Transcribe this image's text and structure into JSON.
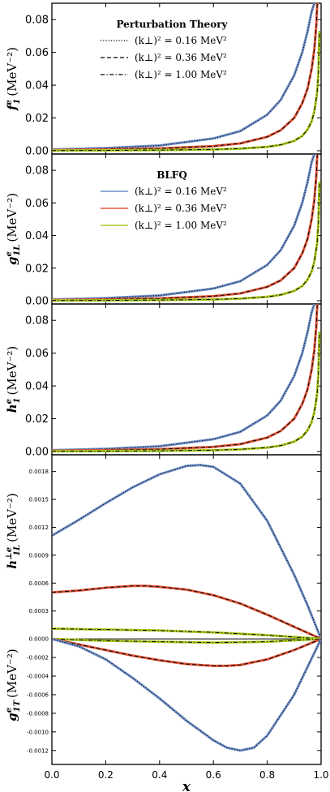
{
  "colors": {
    "series": [
      "#6f8fc9",
      "#e0563a",
      "#aacb22"
    ],
    "overlay": "#000000",
    "frame": "#000000"
  },
  "chart_data": [
    {
      "type": "line",
      "panel": "f1",
      "ylabel": "f_1^e (MeV^-2)",
      "ylabel_main": "f",
      "ylabel_sub": "1",
      "ylabel_sup": "e",
      "ylabel_unit": "(MeV⁻²)",
      "xlim": [
        0,
        1
      ],
      "ylim": [
        -0.002,
        0.09
      ],
      "yticks": [
        0.0,
        0.02,
        0.04,
        0.06,
        0.08
      ],
      "ytick_labels": [
        "0.00",
        "0.02",
        "0.04",
        "0.06",
        "0.08"
      ],
      "legend": {
        "title": "Perturbation Theory",
        "location": "upper-center",
        "entries": [
          "(k⊥)² = 0.16 MeV²",
          "(k⊥)² = 0.36 MeV²",
          "(k⊥)² = 1.00 MeV²"
        ],
        "entry_styles": [
          "dotted",
          "dashed",
          "dashdot"
        ]
      },
      "series": [
        {
          "x": [
            0.0,
            0.2,
            0.4,
            0.6,
            0.7,
            0.8,
            0.85,
            0.9,
            0.93,
            0.95,
            0.965,
            0.975
          ],
          "values": [
            0.0008,
            0.0016,
            0.0032,
            0.0075,
            0.012,
            0.022,
            0.031,
            0.046,
            0.06,
            0.073,
            0.085,
            0.09
          ]
        },
        {
          "x": [
            0.0,
            0.2,
            0.4,
            0.6,
            0.7,
            0.8,
            0.85,
            0.9,
            0.93,
            0.95,
            0.965,
            0.975,
            0.982,
            0.986
          ],
          "values": [
            0.0004,
            0.0008,
            0.0014,
            0.0028,
            0.0045,
            0.0085,
            0.0125,
            0.02,
            0.029,
            0.038,
            0.05,
            0.062,
            0.076,
            0.09
          ]
        },
        {
          "x": [
            0.0,
            0.2,
            0.4,
            0.6,
            0.7,
            0.8,
            0.85,
            0.9,
            0.93,
            0.95,
            0.965,
            0.975,
            0.985,
            0.99,
            0.994
          ],
          "values": [
            0.0001,
            0.0002,
            0.0004,
            0.0008,
            0.0013,
            0.0024,
            0.0036,
            0.006,
            0.009,
            0.013,
            0.018,
            0.024,
            0.035,
            0.047,
            0.073
          ]
        }
      ]
    },
    {
      "type": "line",
      "panel": "g1L",
      "ylabel": "g_1L^e (MeV^-2)",
      "ylabel_main": "g",
      "ylabel_sub": "1L",
      "ylabel_sup": "e",
      "ylabel_unit": "(MeV⁻²)",
      "xlim": [
        0,
        1
      ],
      "ylim": [
        -0.002,
        0.09
      ],
      "yticks": [
        0.0,
        0.02,
        0.04,
        0.06,
        0.08
      ],
      "ytick_labels": [
        "0.00",
        "0.02",
        "0.04",
        "0.06",
        "0.08"
      ],
      "legend": {
        "title": "BLFQ",
        "location": "upper-center",
        "entries": [
          "(k⊥)² = 0.16 MeV²",
          "(k⊥)² = 0.36 MeV²",
          "(k⊥)² = 1.00 MeV²"
        ],
        "entry_styles": [
          "solid",
          "solid",
          "solid"
        ]
      },
      "series": [
        {
          "x": [
            0.0,
            0.2,
            0.4,
            0.6,
            0.7,
            0.8,
            0.85,
            0.9,
            0.93,
            0.95,
            0.965,
            0.975
          ],
          "values": [
            0.0008,
            0.0016,
            0.0032,
            0.0075,
            0.012,
            0.022,
            0.031,
            0.046,
            0.06,
            0.073,
            0.085,
            0.09
          ]
        },
        {
          "x": [
            0.0,
            0.2,
            0.4,
            0.6,
            0.7,
            0.8,
            0.85,
            0.9,
            0.93,
            0.95,
            0.965,
            0.975,
            0.982,
            0.986
          ],
          "values": [
            0.0004,
            0.0008,
            0.0014,
            0.0028,
            0.0045,
            0.0085,
            0.0125,
            0.02,
            0.029,
            0.038,
            0.05,
            0.062,
            0.076,
            0.09
          ]
        },
        {
          "x": [
            0.0,
            0.2,
            0.4,
            0.6,
            0.7,
            0.8,
            0.85,
            0.9,
            0.93,
            0.95,
            0.965,
            0.975,
            0.985,
            0.99,
            0.994
          ],
          "values": [
            0.0001,
            0.0002,
            0.0004,
            0.0008,
            0.0013,
            0.0024,
            0.0036,
            0.006,
            0.009,
            0.013,
            0.018,
            0.024,
            0.035,
            0.047,
            0.073
          ]
        }
      ]
    },
    {
      "type": "line",
      "panel": "h1",
      "ylabel": "h_1^e (MeV^-2)",
      "ylabel_main": "h",
      "ylabel_sub": "1",
      "ylabel_sup": "e",
      "ylabel_unit": "(MeV⁻²)",
      "xlim": [
        0,
        1
      ],
      "ylim": [
        -0.002,
        0.09
      ],
      "yticks": [
        0.0,
        0.02,
        0.04,
        0.06,
        0.08
      ],
      "ytick_labels": [
        "0.00",
        "0.02",
        "0.04",
        "0.06",
        "0.08"
      ],
      "series": [
        {
          "x": [
            0.0,
            0.2,
            0.4,
            0.6,
            0.7,
            0.8,
            0.85,
            0.9,
            0.93,
            0.95,
            0.965,
            0.975
          ],
          "values": [
            0.0008,
            0.0016,
            0.0032,
            0.0075,
            0.012,
            0.022,
            0.031,
            0.046,
            0.06,
            0.073,
            0.085,
            0.09
          ]
        },
        {
          "x": [
            0.0,
            0.2,
            0.4,
            0.6,
            0.7,
            0.8,
            0.85,
            0.9,
            0.93,
            0.95,
            0.965,
            0.975,
            0.982,
            0.986
          ],
          "values": [
            0.0004,
            0.0008,
            0.0014,
            0.0028,
            0.0045,
            0.0085,
            0.0125,
            0.02,
            0.029,
            0.038,
            0.05,
            0.062,
            0.076,
            0.09
          ]
        },
        {
          "x": [
            0.0,
            0.2,
            0.4,
            0.6,
            0.7,
            0.8,
            0.85,
            0.9,
            0.93,
            0.95,
            0.965,
            0.975,
            0.985,
            0.99,
            0.994
          ],
          "values": [
            0.0001,
            0.0002,
            0.0004,
            0.0008,
            0.0013,
            0.0024,
            0.0036,
            0.006,
            0.009,
            0.013,
            0.018,
            0.024,
            0.035,
            0.047,
            0.073
          ]
        }
      ]
    },
    {
      "type": "line",
      "panel": "h1Lperp_g1T",
      "ylabel_top": "h_1L^⊥e (MeV^-2)",
      "ylabel_top_main": "h",
      "ylabel_top_sub": "1L",
      "ylabel_top_sup": "⊥e",
      "ylabel_top_unit": "(MeV⁻²)",
      "ylabel_bottom": "g_1T^e (MeV^-2)",
      "ylabel_bottom_main": "g",
      "ylabel_bottom_sub": "1T",
      "ylabel_bottom_sup": "e",
      "ylabel_bottom_unit": "(MeV⁻²)",
      "xlabel": "x",
      "xlim": [
        0,
        1
      ],
      "ylim": [
        -0.00135,
        0.00198
      ],
      "xticks": [
        0.0,
        0.2,
        0.4,
        0.6,
        0.8,
        1.0
      ],
      "xtick_labels": [
        "0.0",
        "0.2",
        "0.4",
        "0.6",
        "0.8",
        "1.0"
      ],
      "yticks": [
        0.0018,
        0.0015,
        0.0012,
        0.0009,
        0.0006,
        0.0003,
        0.0,
        -0.0002,
        -0.0004,
        -0.0006,
        -0.0008,
        -0.001,
        -0.0012
      ],
      "ytick_labels": [
        "0.0018",
        "0.0015",
        "0.0012",
        "0.0009",
        "0.0006",
        "0.0003",
        "0.0000",
        "-0.0002",
        "-0.0004",
        "-0.0006",
        "-0.0008",
        "-0.0010",
        "-0.0012"
      ],
      "series": [
        {
          "name": "h1L top 0.16",
          "x": [
            0.0,
            0.1,
            0.2,
            0.3,
            0.4,
            0.5,
            0.55,
            0.6,
            0.7,
            0.8,
            0.9,
            0.95,
            1.0
          ],
          "values": [
            0.00111,
            0.00128,
            0.00146,
            0.00163,
            0.00177,
            0.00186,
            0.00187,
            0.00185,
            0.00167,
            0.00127,
            0.00069,
            0.00036,
            0.0
          ]
        },
        {
          "name": "h1L top 0.36",
          "x": [
            0.0,
            0.1,
            0.2,
            0.3,
            0.35,
            0.4,
            0.5,
            0.6,
            0.7,
            0.8,
            0.9,
            1.0
          ],
          "values": [
            0.0005,
            0.00052,
            0.00055,
            0.00057,
            0.00057,
            0.00056,
            0.00053,
            0.00047,
            0.00038,
            0.00026,
            0.00013,
            0.0
          ]
        },
        {
          "name": "h1L top 1.00",
          "x": [
            0.0,
            0.2,
            0.4,
            0.6,
            0.8,
            1.0
          ],
          "values": [
            0.00011,
            0.0001,
            9e-05,
            7e-05,
            4e-05,
            0.0
          ]
        },
        {
          "name": "g1T 1.00",
          "x": [
            0.0,
            0.2,
            0.4,
            0.6,
            0.8,
            1.0
          ],
          "values": [
            0.0,
            -2e-05,
            -3e-05,
            -4e-05,
            -3e-05,
            0.0
          ]
        },
        {
          "name": "g1T 0.36",
          "x": [
            0.0,
            0.1,
            0.2,
            0.3,
            0.4,
            0.5,
            0.6,
            0.65,
            0.7,
            0.8,
            0.9,
            1.0
          ],
          "values": [
            0.0,
            -6e-05,
            -0.00012,
            -0.00018,
            -0.00023,
            -0.00027,
            -0.00029,
            -0.00029,
            -0.00028,
            -0.00022,
            -0.00012,
            0.0
          ]
        },
        {
          "name": "g1T 0.16",
          "x": [
            0.0,
            0.1,
            0.2,
            0.3,
            0.4,
            0.5,
            0.6,
            0.65,
            0.7,
            0.75,
            0.8,
            0.9,
            1.0
          ],
          "values": [
            0.0,
            -8e-05,
            -0.00022,
            -0.00042,
            -0.00064,
            -0.00088,
            -0.00109,
            -0.00117,
            -0.0012,
            -0.00117,
            -0.00104,
            -0.0006,
            0.0
          ]
        }
      ]
    }
  ]
}
